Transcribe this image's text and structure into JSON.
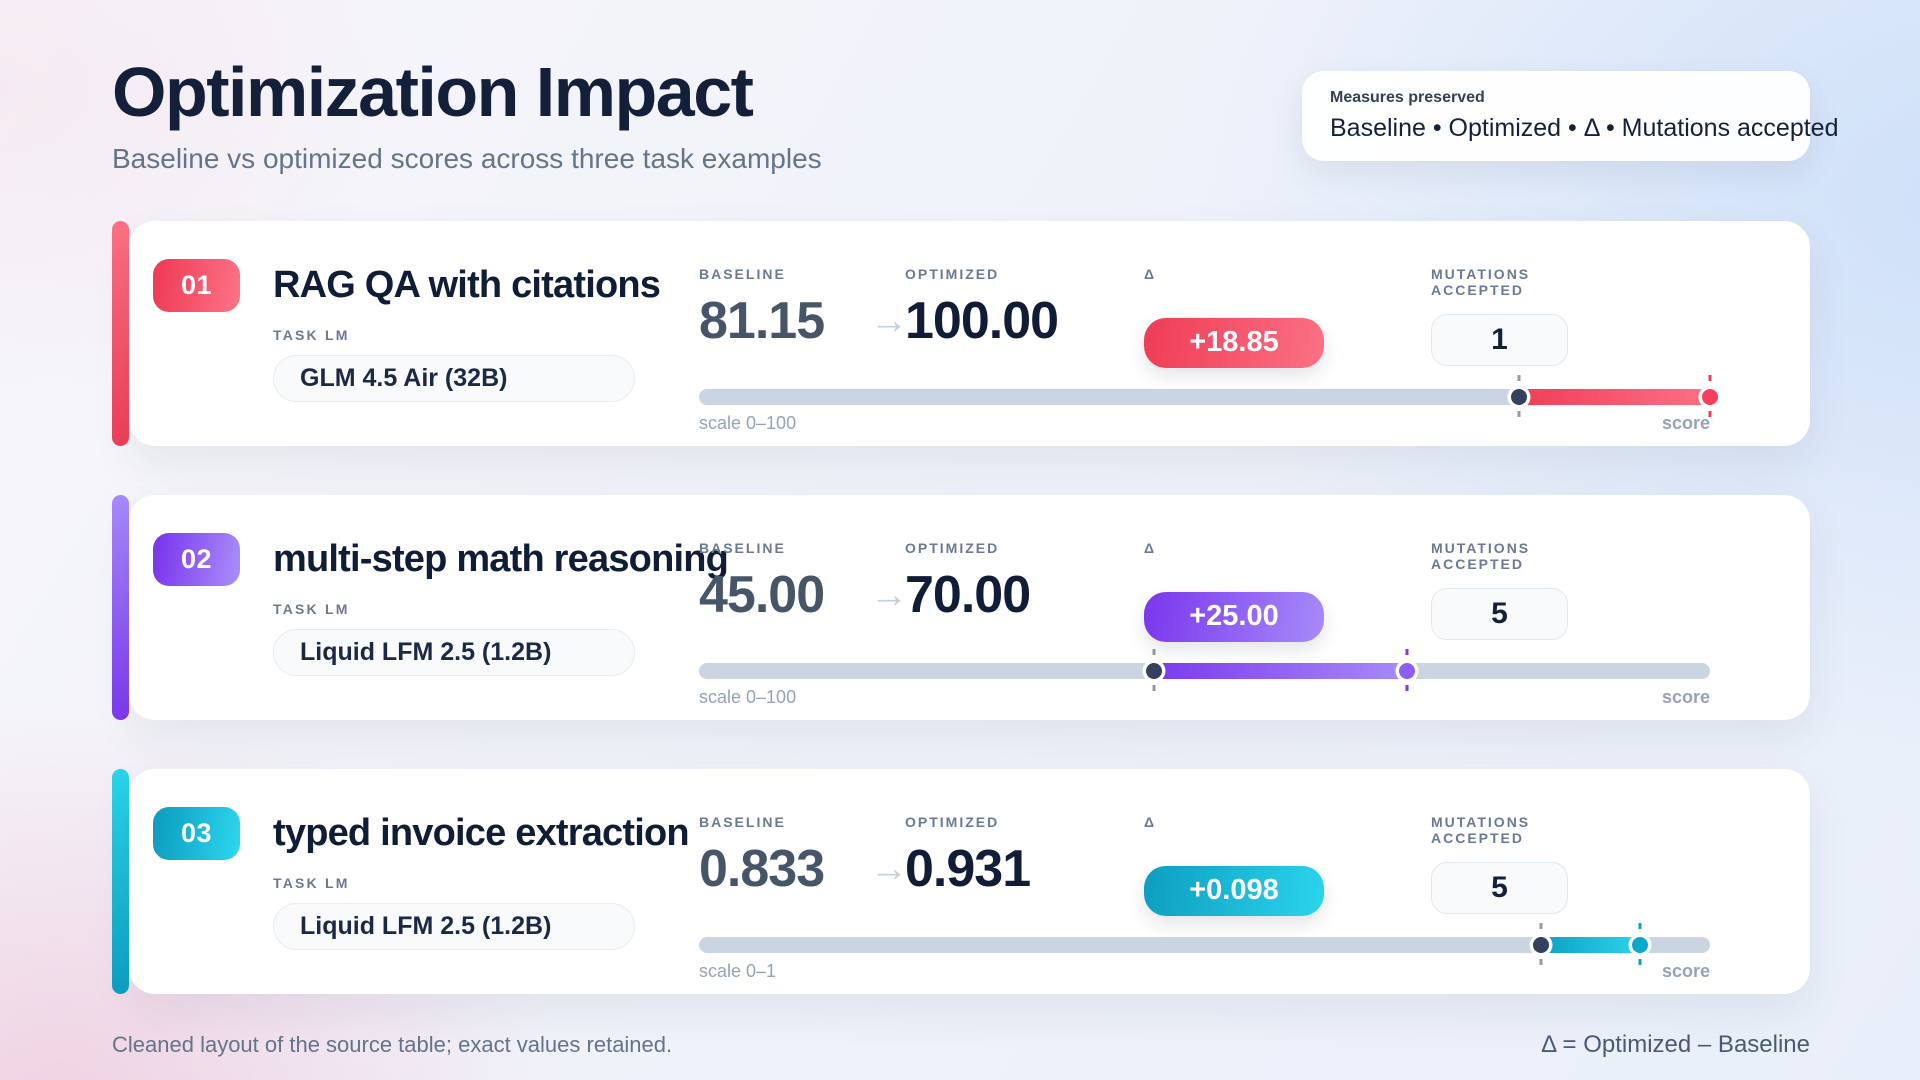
{
  "header": {
    "title": "Optimization Impact",
    "subtitle": "Baseline vs optimized scores across three task examples",
    "measures": {
      "label": "Measures preserved",
      "value": "Baseline • Optimized • Δ • Mutations accepted"
    }
  },
  "labels": {
    "task_lm": "TASK LM",
    "baseline": "BASELINE",
    "optimized": "OPTIMIZED",
    "delta": "Δ",
    "mutations_accepted": "MUTATIONS ACCEPTED",
    "score": "score"
  },
  "cards": [
    {
      "number": "01",
      "title": "RAG QA with citations",
      "task_lm": "GLM 4.5 Air (32B)",
      "baseline": "81.15",
      "optimized": "100.00",
      "delta": "+18.85",
      "mutations": "1",
      "bar": {
        "scale_label": "scale 0–100",
        "scale_max": 100,
        "baseline_value": 81.15,
        "optimized_value": 100
      },
      "colors": {
        "accent": "#f03e58",
        "accent_light": "#fb7185",
        "dot": "#f43f5e"
      }
    },
    {
      "number": "02",
      "title": "multi-step math reasoning",
      "task_lm": "Liquid LFM 2.5 (1.2B)",
      "baseline": "45.00",
      "optimized": "70.00",
      "delta": "+25.00",
      "mutations": "5",
      "bar": {
        "scale_label": "scale 0–100",
        "scale_max": 100,
        "baseline_value": 45,
        "optimized_value": 70
      },
      "colors": {
        "accent": "#7c3aed",
        "accent_light": "#a78bfa",
        "dot": "#8b5cf6"
      }
    },
    {
      "number": "03",
      "title": "typed invoice extraction",
      "task_lm": "Liquid LFM 2.5 (1.2B)",
      "baseline": "0.833",
      "optimized": "0.931",
      "delta": "+0.098",
      "mutations": "5",
      "bar": {
        "scale_label": "scale 0–1",
        "scale_max": 1,
        "baseline_value": 0.833,
        "optimized_value": 0.931
      },
      "colors": {
        "accent": "#0ea0c2",
        "accent_light": "#2cd4ec",
        "dot": "#0aa8cb"
      }
    }
  ],
  "footer": {
    "note": "Cleaned layout of the source table; exact values retained.",
    "formula": "Δ = Optimized – Baseline"
  },
  "chart_data": {
    "type": "bar",
    "title": "Optimization Impact",
    "subtitle": "Baseline vs optimized scores across three task examples",
    "categories": [
      "RAG QA with citations",
      "multi-step math reasoning",
      "typed invoice extraction"
    ],
    "task_lms": [
      "GLM 4.5 Air (32B)",
      "Liquid LFM 2.5 (1.2B)",
      "Liquid LFM 2.5 (1.2B)"
    ],
    "series": [
      {
        "name": "Baseline",
        "values": [
          81.15,
          45.0,
          0.833
        ]
      },
      {
        "name": "Optimized",
        "values": [
          100.0,
          70.0,
          0.931
        ]
      },
      {
        "name": "Δ",
        "values": [
          18.85,
          25.0,
          0.098
        ]
      },
      {
        "name": "Mutations accepted",
        "values": [
          1,
          5,
          5
        ]
      }
    ],
    "scales": [
      "0–100",
      "0–100",
      "0–1"
    ],
    "note": "Δ = Optimized – Baseline"
  }
}
